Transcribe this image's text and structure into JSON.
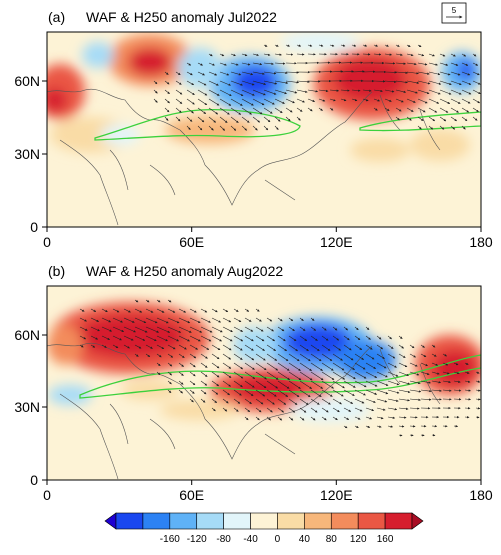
{
  "panels": [
    {
      "label": "(a)",
      "title": "WAF & H250 anomaly Jul2022",
      "x_ticks": [
        "0",
        "60E",
        "120E",
        "180"
      ],
      "y_ticks": [
        "0",
        "30N",
        "60N"
      ],
      "ref_vector_label": "5"
    },
    {
      "label": "(b)",
      "title": "WAF & H250 anomaly Aug2022",
      "x_ticks": [
        "0",
        "60E",
        "120E",
        "180"
      ],
      "y_ticks": [
        "0",
        "30N",
        "60N"
      ]
    }
  ],
  "colorbar": {
    "ticks": [
      "-160",
      "-120",
      "-80",
      "-40",
      "0",
      "40",
      "80",
      "120",
      "160"
    ],
    "colors": [
      "#1e00d2",
      "#1a47f0",
      "#2c82f4",
      "#5fb2f7",
      "#a6dbf7",
      "#e2f5fa",
      "#fdf3d6",
      "#f9dca6",
      "#f7b77b",
      "#f38c5c",
      "#ea5744",
      "#d61e2e",
      "#a80d24"
    ]
  }
}
